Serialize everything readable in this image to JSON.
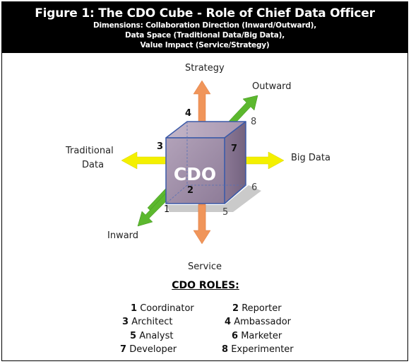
{
  "header": {
    "title": "Figure 1:  The CDO Cube - Role of Chief Data Officer",
    "subtitle_lines": [
      "Dimensions: Collaboration Direction (Inward/Outward),",
      "Data Space (Traditional Data/Big Data),",
      "Value Impact (Service/Strategy)"
    ]
  },
  "diagram": {
    "cube_label": "CDO",
    "axis_labels": {
      "strategy": "Strategy",
      "service": "Service",
      "outward": "Outward",
      "inward": "Inward",
      "traditional_line1": "Traditional",
      "traditional_line2": "Data",
      "big_data": "Big Data"
    },
    "face_numbers": [
      "1",
      "2",
      "3",
      "4",
      "5",
      "6",
      "7",
      "8"
    ],
    "colors": {
      "vertical_axis": "#f0955a",
      "horizontal_axis": "#f4f000",
      "depth_axis": "#5cb82e",
      "cube_front": "#9d8aa6",
      "cube_edge": "#3b5aa8"
    }
  },
  "roles": {
    "title": "CDO ROLES:",
    "items": [
      {
        "num": "1",
        "name": "Coordinator"
      },
      {
        "num": "2",
        "name": "Reporter"
      },
      {
        "num": "3",
        "name": "Architect"
      },
      {
        "num": "4",
        "name": "Ambassador"
      },
      {
        "num": "5",
        "name": "Analyst"
      },
      {
        "num": "6",
        "name": "Marketer"
      },
      {
        "num": "7",
        "name": "Developer"
      },
      {
        "num": "8",
        "name": "Experimenter"
      }
    ]
  }
}
